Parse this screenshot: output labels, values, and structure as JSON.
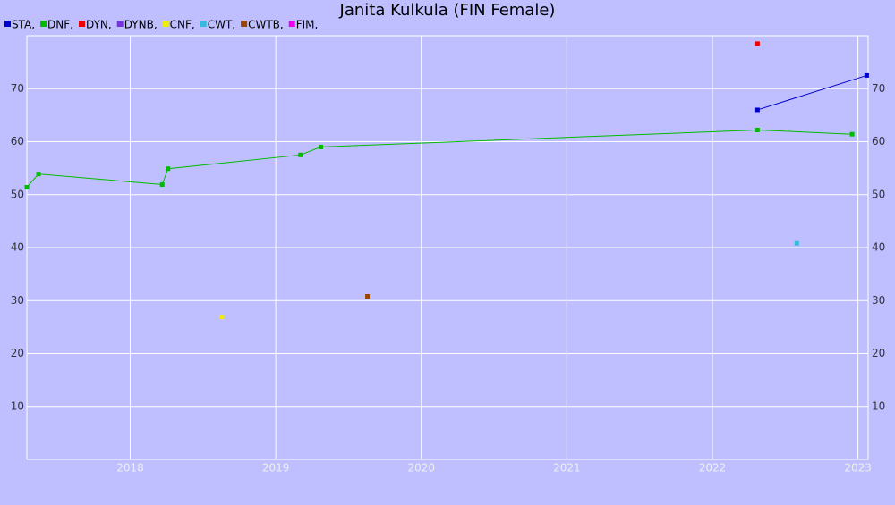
{
  "chart_data": {
    "type": "line",
    "title": "Janita Kulkula (FIN Female)",
    "xlim": [
      2017.29,
      2023.07
    ],
    "xticks": [
      2018,
      2019,
      2020,
      2021,
      2022,
      2023
    ],
    "ylim": [
      0,
      80
    ],
    "yticks": [
      10,
      20,
      30,
      40,
      50,
      60,
      70
    ],
    "grid": true,
    "legend": "top-left",
    "series": [
      {
        "name": "STA,",
        "color": "#0000cc",
        "x": [
          2022.31,
          2023.06
        ],
        "values": [
          66,
          72.5
        ]
      },
      {
        "name": "DNF,",
        "color": "#00bb00",
        "x": [
          2017.29,
          2017.37,
          2018.22,
          2018.26,
          2019.17,
          2019.31,
          2022.31,
          2022.96
        ],
        "values": [
          51.4,
          53.9,
          51.9,
          54.9,
          57.5,
          59.0,
          62.2,
          61.4
        ]
      },
      {
        "name": "DYN,",
        "color": "#ee0000",
        "x": [
          2022.31
        ],
        "values": [
          78.5
        ]
      },
      {
        "name": "DYNB,",
        "color": "#7733dd",
        "x": [],
        "values": []
      },
      {
        "name": "CNF,",
        "color": "#eeee00",
        "x": [
          2018.63
        ],
        "values": [
          26.9
        ]
      },
      {
        "name": "CWT,",
        "color": "#33bbdd",
        "x": [
          2022.58
        ],
        "values": [
          40.8
        ]
      },
      {
        "name": "CWTB,",
        "color": "#994400",
        "x": [
          2019.63
        ],
        "values": [
          30.8
        ]
      },
      {
        "name": "FIM,",
        "color": "#ee00ee",
        "x": [],
        "values": []
      }
    ]
  }
}
